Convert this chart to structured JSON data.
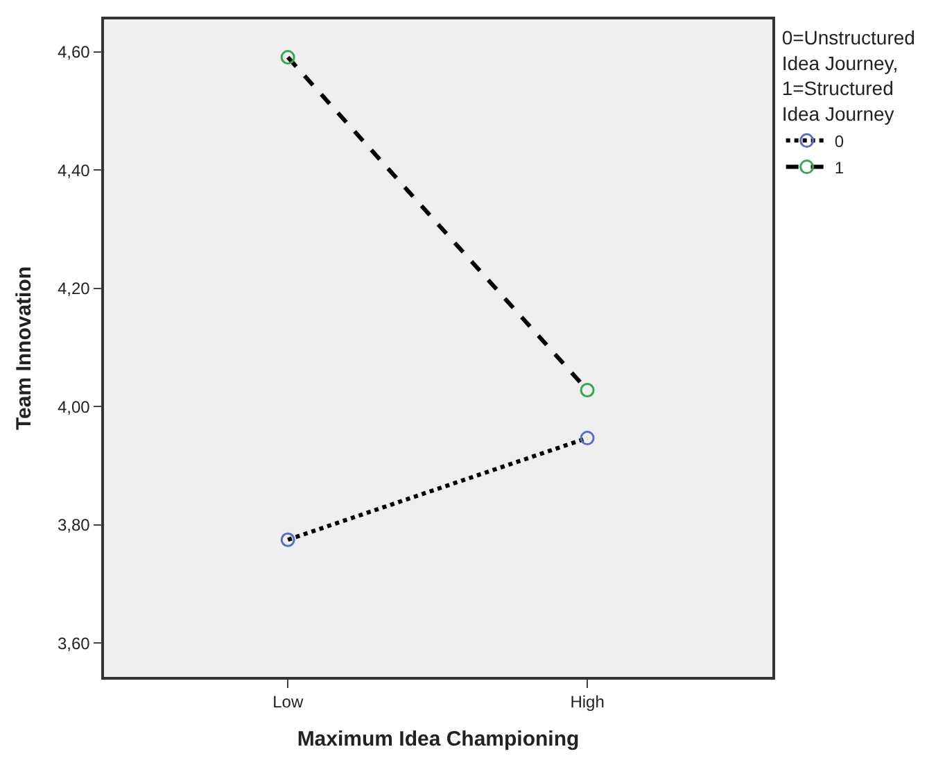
{
  "chart_data": {
    "type": "line",
    "xlabel": "Maximum Idea Championing",
    "ylabel": "Team Innovation",
    "legend_title": "0=Unstructured Idea Journey, 1=Structured Idea Journey",
    "categories": [
      "Low",
      "High"
    ],
    "series": [
      {
        "name": "0",
        "color": "#5a6fc2",
        "values": [
          3.775,
          3.947
        ],
        "line_style": "dotted"
      },
      {
        "name": "1",
        "color": "#3aa655",
        "values": [
          4.591,
          4.028
        ],
        "line_style": "dashed"
      }
    ],
    "ylim": [
      3.543,
      4.655
    ],
    "yticks": [
      {
        "value": 3.6,
        "label": "3,60"
      },
      {
        "value": 3.8,
        "label": "3,80"
      },
      {
        "value": 4.0,
        "label": "4,00"
      },
      {
        "value": 4.2,
        "label": "4,20"
      },
      {
        "value": 4.4,
        "label": "4,40"
      },
      {
        "value": 4.6,
        "label": "4,60"
      }
    ],
    "grid": false,
    "legend": "top right",
    "marker": "circle"
  }
}
